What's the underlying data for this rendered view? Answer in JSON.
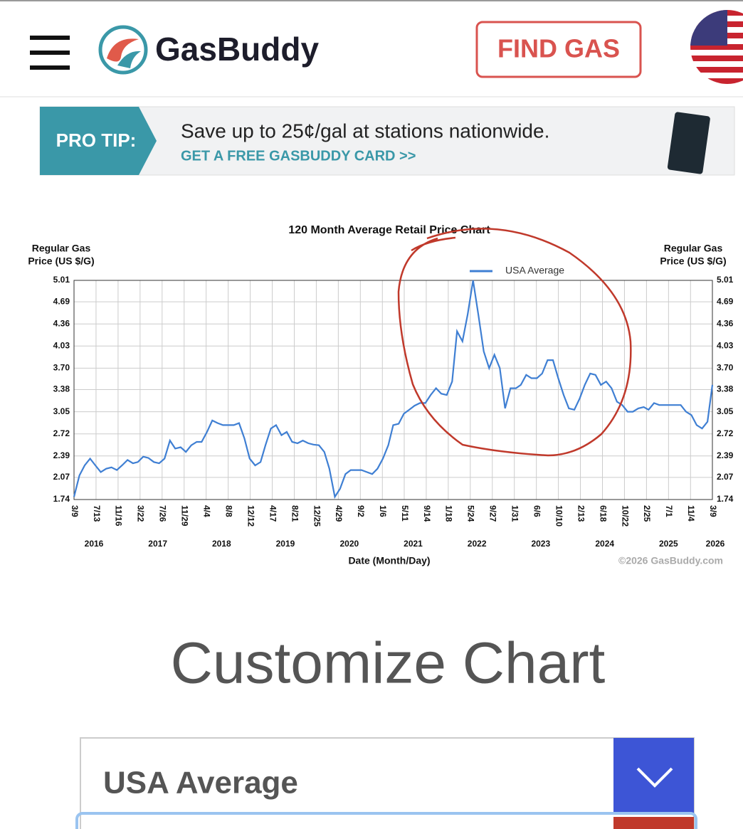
{
  "header": {
    "brand": "GasBuddy",
    "button": "FIND GAS"
  },
  "banner": {
    "label": "PRO TIP:",
    "text": "Save up to 25¢/gal at stations nationwide.",
    "link": "GET A FREE GASBUDDY CARD >>"
  },
  "chart_data": {
    "type": "line",
    "title": "120 Month Average Retail Price Chart",
    "y_label_lines": [
      "Regular Gas",
      "Price (US $/G)"
    ],
    "x_label": "Date (Month/Day)",
    "credit": "©2026 GasBuddy.com",
    "grid": true,
    "ylim": [
      1.74,
      5.01
    ],
    "yticks": [
      1.74,
      2.07,
      2.39,
      2.72,
      3.05,
      3.38,
      {
        "value": 3.7,
        "label": "3.70"
      },
      4.03,
      4.36,
      4.69,
      5.01
    ],
    "xlim": [
      "2016-03-09",
      "2026-03-09"
    ],
    "xticks": [
      {
        "value": "2016-03-09",
        "label": "3/9"
      },
      {
        "value": "2016-07-13",
        "label": "7/13"
      },
      {
        "value": "2016-11-16",
        "label": "11/16"
      },
      {
        "value": "2017-03-22",
        "label": "3/22"
      },
      {
        "value": "2017-07-26",
        "label": "7/26"
      },
      {
        "value": "2017-11-29",
        "label": "11/29"
      },
      {
        "value": "2018-04-04",
        "label": "4/4"
      },
      {
        "value": "2018-08-08",
        "label": "8/8"
      },
      {
        "value": "2018-12-12",
        "label": "12/12"
      },
      {
        "value": "2019-04-17",
        "label": "4/17"
      },
      {
        "value": "2019-08-21",
        "label": "8/21"
      },
      {
        "value": "2019-12-25",
        "label": "12/25"
      },
      {
        "value": "2020-04-29",
        "label": "4/29"
      },
      {
        "value": "2020-09-02",
        "label": "9/2"
      },
      {
        "value": "2021-01-06",
        "label": "1/6"
      },
      {
        "value": "2021-05-11",
        "label": "5/11"
      },
      {
        "value": "2021-09-14",
        "label": "9/14"
      },
      {
        "value": "2022-01-18",
        "label": "1/18"
      },
      {
        "value": "2022-05-24",
        "label": "5/24"
      },
      {
        "value": "2022-09-27",
        "label": "9/27"
      },
      {
        "value": "2023-01-31",
        "label": "1/31"
      },
      {
        "value": "2023-06-06",
        "label": "6/6"
      },
      {
        "value": "2023-10-10",
        "label": "10/10"
      },
      {
        "value": "2024-02-13",
        "label": "2/13"
      },
      {
        "value": "2024-06-18",
        "label": "6/18"
      },
      {
        "value": "2024-10-22",
        "label": "10/22"
      },
      {
        "value": "2025-02-25",
        "label": "2/25"
      },
      {
        "value": "2025-07-01",
        "label": "7/1"
      },
      {
        "value": "2025-11-04",
        "label": "11/4"
      },
      {
        "value": "2026-03-09",
        "label": "3/9"
      }
    ],
    "x_year_labels": [
      "2016",
      "2017",
      "2018",
      "2019",
      "2020",
      "2021",
      "2022",
      "2023",
      "2024",
      "2025",
      "2026"
    ],
    "series": [
      {
        "name": "USA Average",
        "color": "#3f7fd3",
        "x": [
          "2016-03-09",
          "2016-04-09",
          "2016-05-09",
          "2016-06-09",
          "2016-07-09",
          "2016-08-09",
          "2016-09-09",
          "2016-10-09",
          "2016-11-09",
          "2016-12-09",
          "2017-01-09",
          "2017-02-09",
          "2017-03-09",
          "2017-04-09",
          "2017-05-09",
          "2017-06-09",
          "2017-07-09",
          "2017-08-09",
          "2017-09-09",
          "2017-10-09",
          "2017-11-09",
          "2017-12-09",
          "2018-01-09",
          "2018-02-09",
          "2018-03-09",
          "2018-04-09",
          "2018-05-09",
          "2018-06-09",
          "2018-07-09",
          "2018-08-09",
          "2018-09-09",
          "2018-10-09",
          "2018-11-09",
          "2018-12-09",
          "2019-01-09",
          "2019-02-09",
          "2019-03-09",
          "2019-04-09",
          "2019-05-09",
          "2019-06-09",
          "2019-07-09",
          "2019-08-09",
          "2019-09-09",
          "2019-10-09",
          "2019-11-09",
          "2019-12-09",
          "2020-01-09",
          "2020-02-09",
          "2020-03-09",
          "2020-04-09",
          "2020-05-09",
          "2020-06-09",
          "2020-07-09",
          "2020-08-09",
          "2020-09-09",
          "2020-10-09",
          "2020-11-09",
          "2020-12-09",
          "2021-01-09",
          "2021-02-09",
          "2021-03-09",
          "2021-04-09",
          "2021-05-09",
          "2021-06-09",
          "2021-07-09",
          "2021-08-09",
          "2021-09-09",
          "2021-10-09",
          "2021-11-09",
          "2021-12-09",
          "2022-01-09",
          "2022-02-09",
          "2022-03-09",
          "2022-04-09",
          "2022-05-09",
          "2022-06-09",
          "2022-07-09",
          "2022-08-09",
          "2022-09-09",
          "2022-10-09",
          "2022-11-09",
          "2022-12-09",
          "2023-01-09",
          "2023-02-09",
          "2023-03-09",
          "2023-04-09",
          "2023-05-09",
          "2023-06-09",
          "2023-07-09",
          "2023-08-09",
          "2023-09-09",
          "2023-10-09",
          "2023-11-09",
          "2023-12-09",
          "2024-01-09",
          "2024-02-09",
          "2024-03-09",
          "2024-04-09",
          "2024-05-09",
          "2024-06-09",
          "2024-07-09",
          "2024-08-09",
          "2024-09-09",
          "2024-10-09",
          "2024-11-09",
          "2024-12-09",
          "2025-01-09",
          "2025-02-09",
          "2025-03-09",
          "2025-04-09",
          "2025-05-09",
          "2025-06-09",
          "2025-07-09",
          "2025-08-09",
          "2025-09-09",
          "2025-10-09",
          "2025-11-09",
          "2025-12-09",
          "2026-01-09",
          "2026-02-09",
          "2026-03-09"
        ],
        "values": [
          1.78,
          2.1,
          2.25,
          2.35,
          2.25,
          2.15,
          2.2,
          2.22,
          2.18,
          2.25,
          2.33,
          2.28,
          2.3,
          2.38,
          2.36,
          2.3,
          2.28,
          2.35,
          2.62,
          2.5,
          2.52,
          2.45,
          2.55,
          2.6,
          2.6,
          2.75,
          2.92,
          2.88,
          2.85,
          2.85,
          2.85,
          2.88,
          2.65,
          2.35,
          2.25,
          2.3,
          2.55,
          2.8,
          2.85,
          2.7,
          2.75,
          2.6,
          2.58,
          2.62,
          2.58,
          2.56,
          2.55,
          2.45,
          2.2,
          1.78,
          1.9,
          2.12,
          2.18,
          2.18,
          2.18,
          2.15,
          2.12,
          2.2,
          2.35,
          2.55,
          2.85,
          2.87,
          3.02,
          3.08,
          3.14,
          3.18,
          3.18,
          3.3,
          3.4,
          3.32,
          3.3,
          3.5,
          4.25,
          4.1,
          4.5,
          5.01,
          4.5,
          3.95,
          3.7,
          3.9,
          3.7,
          3.1,
          3.4,
          3.4,
          3.45,
          3.6,
          3.55,
          3.55,
          3.62,
          3.82,
          3.82,
          3.55,
          3.3,
          3.1,
          3.08,
          3.25,
          3.45,
          3.62,
          3.6,
          3.45,
          3.5,
          3.4,
          3.2,
          3.15,
          3.05,
          3.05,
          3.1,
          3.12,
          3.08,
          3.18,
          3.15,
          3.15,
          3.15,
          3.15,
          3.15,
          3.05,
          3.0,
          2.85,
          2.8,
          2.9,
          3.45
        ]
      }
    ]
  },
  "customize": {
    "heading": "Customize Chart",
    "select": "USA Average"
  }
}
